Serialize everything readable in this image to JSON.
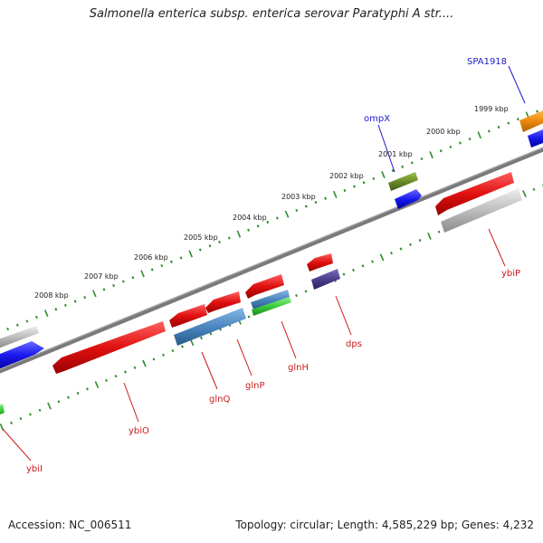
{
  "title": "Salmonella enterica subsp. enterica serovar Paratyphi A str....",
  "footer": {
    "accession": "Accession: NC_006511",
    "topology": "Topology: circular; Length: 4,585,229 bp; Genes: 4,232"
  },
  "kbp_ticks": [
    "2008 kbp",
    "2007 kbp",
    "2006 kbp",
    "2005 kbp",
    "2004 kbp",
    "2003 kbp",
    "2002 kbp",
    "2001 kbp",
    "2000 kbp",
    "1999 kbp"
  ],
  "gene_labels": {
    "forward": [
      "SPA1918",
      "ompX"
    ],
    "reverse": [
      "ybiP",
      "dps",
      "glnH",
      "glnP",
      "glnQ",
      "ybiO",
      "ybiI"
    ]
  },
  "colors": {
    "backbone": "#808080",
    "tick_dots": "#2e8b2e",
    "forward_label": "#1a1acc",
    "reverse_label": "#cc1a1a",
    "red_gene": "#e01010",
    "blue_gene": "#1a1aee",
    "grey_gene": "#b8b8b8",
    "olive_gene": "#6b8c2a",
    "orange_gene": "#f08c10",
    "steelblue_gene": "#4a86bf",
    "green_gene": "#3ccc3c",
    "purple_gene": "#4a3f8c"
  }
}
